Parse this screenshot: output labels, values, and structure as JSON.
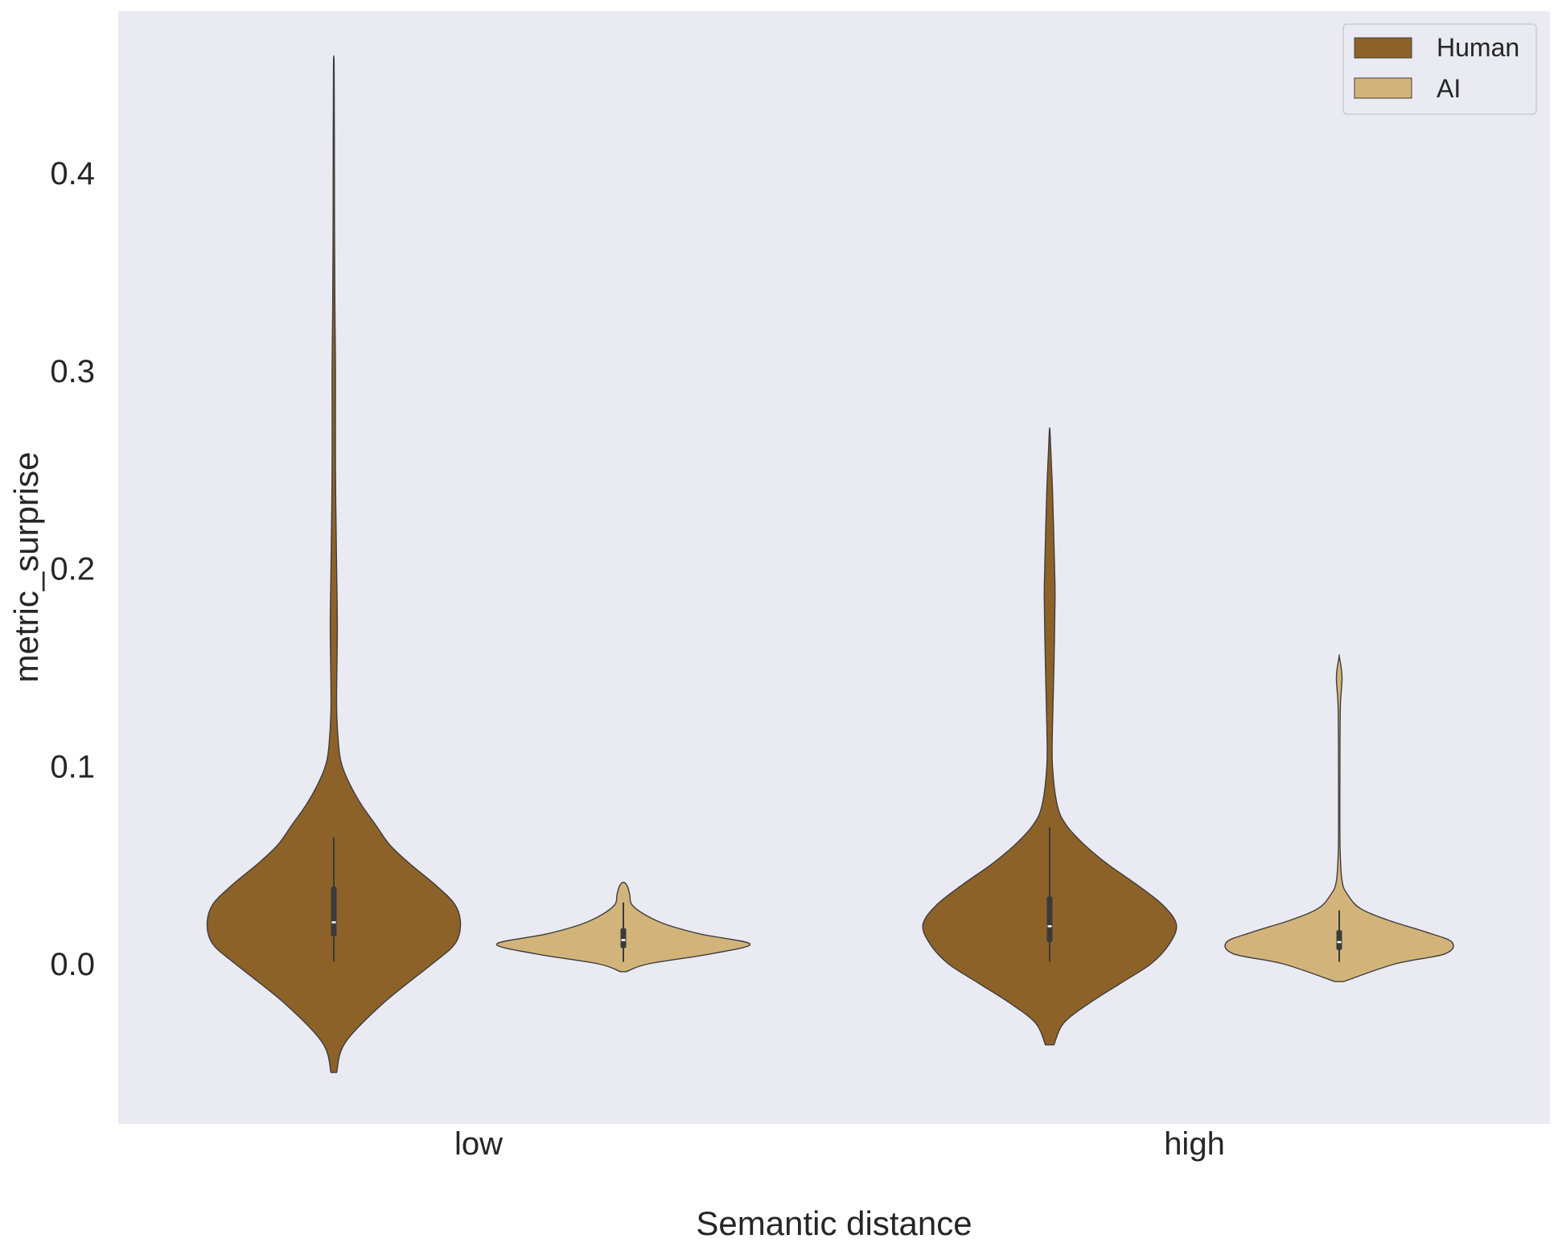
{
  "chart_data": {
    "type": "violin",
    "xlabel": "Semantic distance",
    "ylabel": "metric_surprise",
    "categories": [
      "low",
      "high"
    ],
    "yticks": [
      "0.0",
      "0.1",
      "0.2",
      "0.3",
      "0.4"
    ],
    "ylim": [
      -0.08,
      0.48
    ],
    "grid": false,
    "legend": "top-right",
    "background": "#eaeaf2",
    "series": [
      {
        "name": "Human",
        "color": "#8d6229",
        "violins": [
          {
            "category": "low",
            "y_min": -0.055,
            "y_max": 0.455,
            "whisker_low": 0.001,
            "q1": 0.014,
            "median": 0.021,
            "q3": 0.039,
            "whisker_high": 0.064,
            "profile": [
              [
                -0.055,
                0.02
              ],
              [
                -0.04,
                0.08
              ],
              [
                -0.02,
                0.35
              ],
              [
                0,
                0.7
              ],
              [
                0.01,
                0.86
              ],
              [
                0.02,
                0.9
              ],
              [
                0.03,
                0.86
              ],
              [
                0.04,
                0.72
              ],
              [
                0.05,
                0.55
              ],
              [
                0.06,
                0.4
              ],
              [
                0.07,
                0.3
              ],
              [
                0.08,
                0.2
              ],
              [
                0.09,
                0.12
              ],
              [
                0.1,
                0.06
              ],
              [
                0.11,
                0.035
              ],
              [
                0.13,
                0.02
              ],
              [
                0.17,
                0.025
              ],
              [
                0.2,
                0.02
              ],
              [
                0.25,
                0.012
              ],
              [
                0.3,
                0.012
              ],
              [
                0.33,
                0.008
              ],
              [
                0.37,
                0.005
              ],
              [
                0.42,
                0.004
              ],
              [
                0.455,
                0.002
              ]
            ]
          },
          {
            "category": "high",
            "y_min": -0.041,
            "y_max": 0.27,
            "whisker_low": 0.001,
            "q1": 0.011,
            "median": 0.019,
            "q3": 0.034,
            "whisker_high": 0.069,
            "profile": [
              [
                -0.041,
                0.03
              ],
              [
                -0.03,
                0.1
              ],
              [
                -0.02,
                0.28
              ],
              [
                -0.01,
                0.5
              ],
              [
                0,
                0.72
              ],
              [
                0.01,
                0.85
              ],
              [
                0.02,
                0.9
              ],
              [
                0.03,
                0.8
              ],
              [
                0.04,
                0.62
              ],
              [
                0.05,
                0.42
              ],
              [
                0.06,
                0.25
              ],
              [
                0.07,
                0.12
              ],
              [
                0.08,
                0.055
              ],
              [
                0.1,
                0.02
              ],
              [
                0.12,
                0.02
              ],
              [
                0.15,
                0.03
              ],
              [
                0.185,
                0.038
              ],
              [
                0.2,
                0.035
              ],
              [
                0.22,
                0.028
              ],
              [
                0.24,
                0.02
              ],
              [
                0.26,
                0.008
              ],
              [
                0.27,
                0.002
              ]
            ]
          }
        ]
      },
      {
        "name": "AI",
        "color": "#d2b47a",
        "violins": [
          {
            "category": "low",
            "y_min": -0.004,
            "y_max": 0.041,
            "whisker_low": 0.001,
            "q1": 0.008,
            "median": 0.012,
            "q3": 0.018,
            "whisker_high": 0.031,
            "profile": [
              [
                -0.004,
                0.02
              ],
              [
                0,
                0.18
              ],
              [
                0.005,
                0.62
              ],
              [
                0.01,
                0.9
              ],
              [
                0.015,
                0.55
              ],
              [
                0.02,
                0.3
              ],
              [
                0.025,
                0.15
              ],
              [
                0.03,
                0.06
              ],
              [
                0.035,
                0.045
              ],
              [
                0.039,
                0.03
              ],
              [
                0.041,
                0.01
              ]
            ]
          },
          {
            "category": "high",
            "y_min": -0.009,
            "y_max": 0.155,
            "whisker_low": 0.001,
            "q1": 0.007,
            "median": 0.011,
            "q3": 0.017,
            "whisker_high": 0.027,
            "profile": [
              [
                -0.009,
                0.03
              ],
              [
                0,
                0.4
              ],
              [
                0.005,
                0.75
              ],
              [
                0.011,
                0.8
              ],
              [
                0.016,
                0.62
              ],
              [
                0.022,
                0.35
              ],
              [
                0.028,
                0.15
              ],
              [
                0.035,
                0.06
              ],
              [
                0.042,
                0.02
              ],
              [
                0.06,
                0.006
              ],
              [
                0.1,
                0.005
              ],
              [
                0.13,
                0.008
              ],
              [
                0.145,
                0.02
              ],
              [
                0.155,
                0.002
              ]
            ]
          }
        ]
      }
    ]
  }
}
